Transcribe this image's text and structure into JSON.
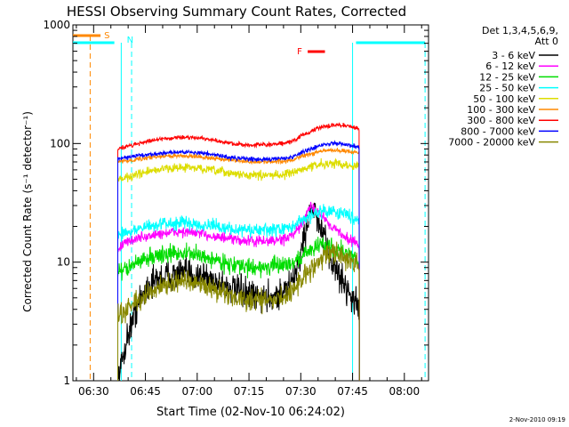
{
  "chart_data": {
    "type": "line",
    "title": "HESSI Observing Summary Count Rates, Corrected",
    "xlabel": "Start Time (02-Nov-10 06:24:02)",
    "ylabel": "Corrected Count Rate (s⁻¹ detector⁻¹)",
    "yscale": "log",
    "xlim": [
      "06:24",
      "08:07"
    ],
    "ylim": [
      1,
      1000
    ],
    "x_ticks": [
      "06:30",
      "06:45",
      "07:00",
      "07:15",
      "07:30",
      "07:45",
      "08:00"
    ],
    "y_ticks": [
      {
        "value": 1,
        "label": "1"
      },
      {
        "value": 10,
        "label": "10"
      },
      {
        "value": 100,
        "label": "100"
      },
      {
        "value": 1000,
        "label": "1000"
      }
    ],
    "legend_header": [
      "Det 1,3,4,5,6,9,",
      "Att 0"
    ],
    "legend_placement": "right",
    "grid": false,
    "data_start": "06:37",
    "data_end": "07:47",
    "series_x": [
      "06:37",
      "06:40",
      "06:43",
      "06:46",
      "06:50",
      "06:55",
      "07:00",
      "07:05",
      "07:10",
      "07:15",
      "07:20",
      "07:25",
      "07:28",
      "07:30",
      "07:33",
      "07:36",
      "07:39",
      "07:42",
      "07:45",
      "07:47"
    ],
    "series": [
      {
        "name": "3 - 6 keV",
        "color": "#000000",
        "noise": 0.14,
        "values": [
          1.0,
          2.5,
          4.5,
          6.5,
          7.5,
          8.0,
          7.8,
          7.0,
          6.0,
          5.2,
          5.0,
          5.5,
          7.0,
          12,
          30,
          18,
          10,
          7,
          5,
          4
        ]
      },
      {
        "name": "6 - 12 keV",
        "color": "#ff00ff",
        "noise": 0.05,
        "values": [
          13,
          15,
          16,
          16.5,
          17.5,
          18,
          17.5,
          16.5,
          15.5,
          15,
          15,
          15.5,
          17,
          20,
          30,
          25,
          20,
          17,
          15,
          14
        ]
      },
      {
        "name": "12 - 25 keV",
        "color": "#00dd00",
        "noise": 0.08,
        "values": [
          8,
          9,
          10,
          11,
          11.5,
          12,
          11.5,
          10.5,
          9.5,
          9,
          9,
          9.5,
          10,
          11,
          13,
          14,
          13.5,
          12.5,
          11,
          10
        ]
      },
      {
        "name": "25 - 50 keV",
        "color": "#00ffff",
        "noise": 0.06,
        "values": [
          17,
          18,
          19,
          20,
          21,
          21.5,
          21,
          20,
          19,
          18.5,
          18.5,
          19,
          20,
          22,
          25,
          27,
          27,
          26,
          24,
          23
        ]
      },
      {
        "name": "50 - 100 keV",
        "color": "#dddd00",
        "noise": 0.04,
        "values": [
          50,
          52,
          55,
          58,
          61,
          63,
          62,
          59,
          56,
          54,
          54,
          55,
          57,
          60,
          64,
          67,
          68,
          67,
          65,
          64
        ]
      },
      {
        "name": "100 - 300 keV",
        "color": "#ff8800",
        "noise": 0.02,
        "values": [
          70,
          72,
          74,
          76,
          78,
          79,
          78,
          75,
          72,
          70,
          70,
          71,
          73,
          77,
          82,
          86,
          88,
          87,
          85,
          84
        ]
      },
      {
        "name": "300 - 800 keV",
        "color": "#ff0000",
        "noise": 0.02,
        "values": [
          90,
          95,
          100,
          105,
          110,
          113,
          112,
          106,
          100,
          97,
          97,
          100,
          106,
          115,
          127,
          137,
          142,
          143,
          138,
          132
        ]
      },
      {
        "name": "800 - 7000 keV",
        "color": "#0000ff",
        "noise": 0.02,
        "values": [
          75,
          77,
          79,
          81,
          83,
          85,
          84,
          80,
          76,
          74,
          74,
          75,
          78,
          83,
          90,
          97,
          100,
          100,
          96,
          92
        ]
      },
      {
        "name": "7000 - 20000 keV",
        "color": "#888800",
        "noise": 0.1,
        "values": [
          3.5,
          4.0,
          4.8,
          5.5,
          6.2,
          6.8,
          6.5,
          6.0,
          5.2,
          4.8,
          4.7,
          5.0,
          5.8,
          7.0,
          9.0,
          11,
          12,
          11.5,
          10,
          9
        ]
      }
    ],
    "saa_label": "S",
    "saa_color": "#ff8800",
    "saa_bar": [
      "06:24",
      "06:32"
    ],
    "saa_marker": "06:29",
    "night_label": "N",
    "night_color": "#00ffff",
    "night_bars": [
      [
        "06:24",
        "06:36"
      ],
      [
        "07:46",
        "08:06"
      ]
    ],
    "night_markers": [
      "06:38",
      "06:41",
      "07:45",
      "08:06"
    ],
    "flare_label": "F",
    "flare_color": "#ff0000",
    "flare_bar": [
      "07:32",
      "07:37"
    ],
    "timestamp": "2-Nov-2010 09:19"
  }
}
